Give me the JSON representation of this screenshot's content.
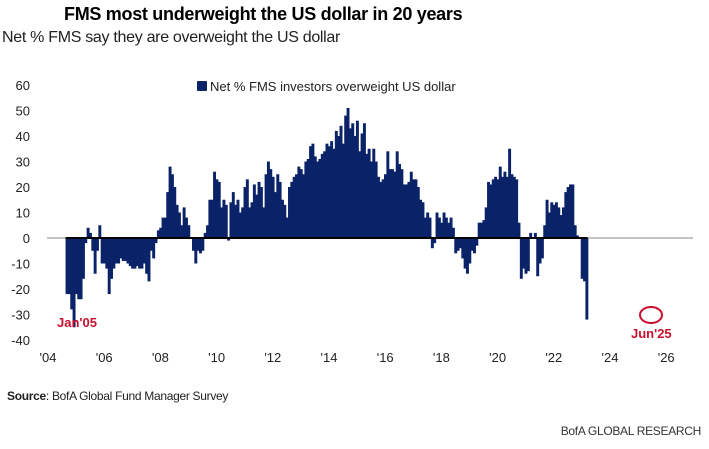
{
  "header": {
    "title": "FMS most underweight the US dollar in 20 years",
    "subtitle": "Net % FMS say they are overweight the US dollar"
  },
  "footer": {
    "source_label": "Source",
    "source_text": ": BofA Global Fund Manager Survey",
    "brand": "BofA GLOBAL RESEARCH"
  },
  "colors": {
    "bar": "#0a2268",
    "annotation": "#c8102e",
    "axis": "#000000"
  },
  "chart_data": {
    "type": "bar",
    "title": "FMS most underweight the US dollar in 20 years",
    "subtitle": "Net % FMS say they are overweight the US dollar",
    "xlabel": "",
    "ylabel": "",
    "ylim": [
      -40,
      60
    ],
    "xlim": [
      2004,
      2026
    ],
    "yticks": [
      60,
      50,
      40,
      30,
      20,
      10,
      0,
      -10,
      -20,
      -30,
      -40
    ],
    "xticks": [
      "'04",
      "'06",
      "'08",
      "'10",
      "'12",
      "'14",
      "'16",
      "'18",
      "'20",
      "'22",
      "'24",
      "'26"
    ],
    "legend": {
      "label": "Net % FMS investors overweight US dollar",
      "position": "top-center"
    },
    "series": [
      {
        "name": "Net % FMS investors overweight US dollar",
        "start": "2004-09",
        "frequency": "monthly",
        "values": [
          -22,
          -22,
          -28,
          -35,
          -22,
          -24,
          -24,
          -16,
          -2,
          4,
          2,
          -5,
          -14,
          -5,
          5,
          -10,
          -10,
          -12,
          -22,
          -16,
          -12,
          -10,
          -10,
          -8,
          -9,
          -9,
          -10,
          -11,
          -12,
          -12,
          -11,
          -12,
          -12,
          -10,
          -14,
          -17,
          -5,
          -8,
          -2,
          3,
          4,
          8,
          8,
          18,
          28,
          25,
          20,
          13,
          10,
          5,
          12,
          8,
          5,
          0,
          -5,
          -10,
          -5,
          -6,
          -5,
          2,
          5,
          15,
          15,
          26,
          23,
          22,
          12,
          15,
          13,
          -1,
          14,
          18,
          13,
          15,
          10,
          12,
          20,
          23,
          12,
          14,
          21,
          17,
          22,
          20,
          12,
          25,
          30,
          27,
          24,
          18,
          25,
          22,
          15,
          13,
          8,
          20,
          22,
          24,
          25,
          28,
          27,
          25,
          30,
          31,
          36,
          37,
          32,
          30,
          31,
          33,
          34,
          37,
          36,
          38,
          35,
          42,
          40,
          44,
          37,
          48,
          51,
          43,
          45,
          40,
          46,
          34,
          41,
          45,
          33,
          35,
          30,
          35,
          30,
          24,
          22,
          23,
          25,
          34,
          27,
          27,
          26,
          34,
          29,
          27,
          21,
          21,
          22,
          26,
          23,
          23,
          20,
          15,
          14,
          8,
          10,
          8,
          -4,
          -2,
          10,
          8,
          6,
          10,
          8,
          6,
          8,
          4,
          -6,
          -5,
          -4,
          -8,
          -12,
          -14,
          -10,
          -5,
          -6,
          -3,
          6,
          6,
          7,
          12,
          22,
          21,
          23,
          24,
          23,
          28,
          24,
          26,
          24,
          35,
          25,
          24,
          23,
          6,
          -16,
          -12,
          -14,
          -13,
          2,
          0,
          2,
          -15,
          -10,
          -8,
          5,
          15,
          10,
          14,
          13,
          14,
          12,
          9,
          12,
          18,
          20,
          21,
          21,
          5,
          1,
          0,
          -16,
          -17,
          -32
        ]
      }
    ],
    "annotations": [
      {
        "label": "Jan'05",
        "date": "2005-01",
        "value": -35
      },
      {
        "label": "Jun'25",
        "date": "2025-06",
        "value": -32
      }
    ]
  }
}
